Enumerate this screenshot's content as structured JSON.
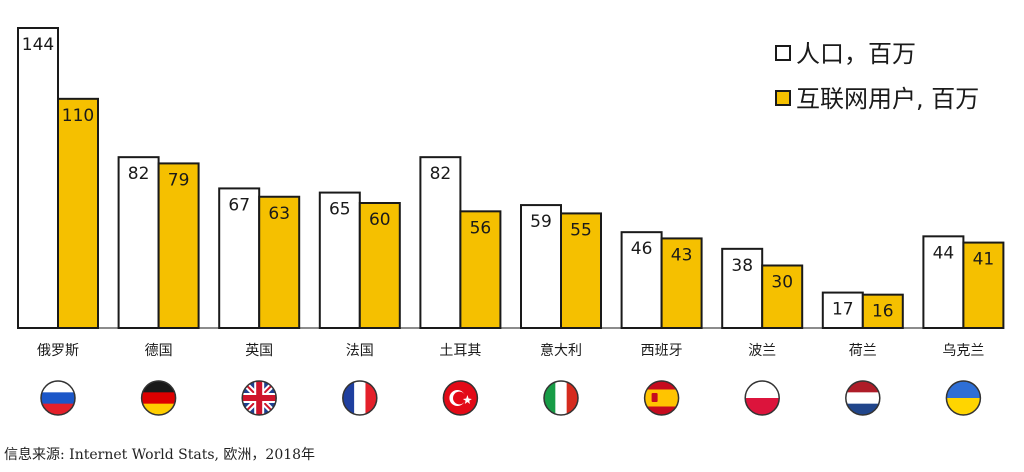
{
  "chart_data": {
    "type": "bar",
    "categories": [
      "俄罗斯",
      "德国",
      "英国",
      "法国",
      "土耳其",
      "意大利",
      "西班牙",
      "波兰",
      "荷兰",
      "乌克兰"
    ],
    "series": [
      {
        "name": "人口，百万",
        "values": [
          144,
          82,
          67,
          65,
          82,
          59,
          46,
          38,
          17,
          44
        ],
        "color": "#ffffff"
      },
      {
        "name": "互联网用户, 百万",
        "values": [
          110,
          79,
          63,
          60,
          56,
          55,
          43,
          30,
          16,
          41
        ],
        "color": "#f5c000"
      }
    ],
    "ylim": [
      0,
      144
    ],
    "legend": "top-right",
    "grid": false,
    "flags": [
      "russia-flag-icon",
      "germany-flag-icon",
      "uk-flag-icon",
      "france-flag-icon",
      "turkey-flag-icon",
      "italy-flag-icon",
      "spain-flag-icon",
      "poland-flag-icon",
      "netherlands-flag-icon",
      "ukraine-flag-icon"
    ]
  },
  "source": "信息来源: Internet World Stats, 欧洲，2018年"
}
